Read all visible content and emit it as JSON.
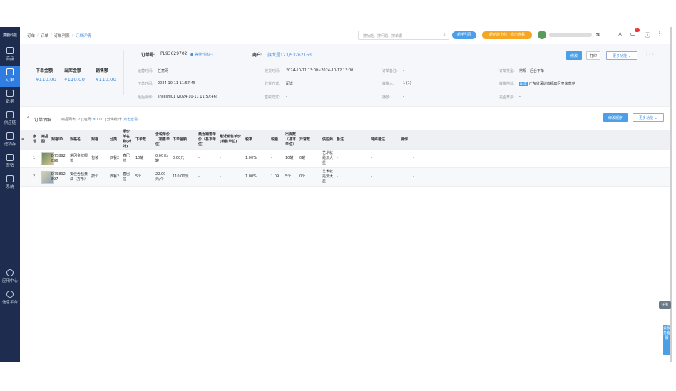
{
  "sidebar": {
    "logo": "燕鹿科技",
    "items": [
      {
        "label": "商品",
        "icon": "shopping-bag-icon"
      },
      {
        "label": "订单",
        "icon": "order-icon",
        "active": true
      },
      {
        "label": "数据",
        "icon": "chart-icon"
      },
      {
        "label": "供应链",
        "icon": "swap-icon"
      },
      {
        "label": "进销存",
        "icon": "inventory-icon"
      },
      {
        "label": "营销",
        "icon": "tag-icon"
      },
      {
        "label": "系统",
        "icon": "gear-icon"
      }
    ],
    "bottom": [
      {
        "label": "应用中心",
        "icon": "apps-icon"
      },
      {
        "label": "信息平台",
        "icon": "cube-icon"
      }
    ]
  },
  "header": {
    "breadcrumb": [
      "订单",
      "订单",
      "订单列表",
      "订单详情"
    ],
    "search_placeholder": "搜功能、搜问题、搜单据",
    "guide": "新手引导",
    "new_feature": "新功能上线，点击查看",
    "notification_count": "1"
  },
  "summary": {
    "labels": [
      "下单金额",
      "出库金额",
      "销售额"
    ],
    "values": [
      "¥110.00",
      "¥110.00",
      "¥110.00"
    ]
  },
  "order": {
    "no_label": "订单号:",
    "no": "PL93629702",
    "status": "● 等待分拣(-)",
    "merchant_label": "商户:",
    "merchant": "旗大是123/S1262163",
    "fields": [
      {
        "label": "运营时间:",
        "value": "任意网"
      },
      {
        "label": "收货时间:",
        "value": "2024-10-11 13:00~2024-10-12 13:00"
      },
      {
        "label": "订单备注:",
        "value": "-"
      },
      {
        "label": "订单类型:",
        "value": "常规 - 后台下单"
      },
      {
        "label": "下单时间:",
        "value": "2024-10-11 11:57:45"
      },
      {
        "label": "收货方式:",
        "value": "配送"
      },
      {
        "label": "收货人:",
        "value": "1 (1)"
      },
      {
        "label": "收货地址:",
        "value": "广东省深圳市福田区皇家草苑",
        "tag": "配送"
      },
      {
        "label": "最后操作:",
        "value": "shceshi01 (2024-10-11 11:57:46)"
      },
      {
        "label": "签收方式:",
        "value": "-"
      },
      {
        "label": "播放:",
        "value": "-"
      },
      {
        "label": "是否开票:",
        "value": "-"
      }
    ]
  },
  "actions": {
    "edit": "修改",
    "print": "打印",
    "more": "更多功能"
  },
  "detail": {
    "title": "订单明细",
    "count_label": "商品列表:",
    "count": "2",
    "refund_label": "运费:",
    "refund": "¥0.00",
    "stat_label": "分类统计:",
    "stat_link": "点击查看",
    "sort_btn": "修改顺序",
    "more": "更多功能"
  },
  "table": {
    "columns": [
      "序号",
      "商品图",
      "规格ID",
      "规格名",
      "规格",
      "分类",
      "报价单名称(对外)",
      "下单数",
      "含税单价（销售单位）",
      "下单金额",
      "最近销售单价（基本单位）",
      "最近销售单价(销售单位)",
      "税率",
      "税额",
      "出库数（基本单位）",
      "异常数",
      "供应商",
      "备注",
      "特殊备注",
      "操作"
    ],
    "rows": [
      [
        "1",
        "",
        "D75892896",
        "常因金牌椰浆",
        "包装",
        "西餐2",
        "春巴拉",
        "10罐",
        "0.00元/罐",
        "0.00元",
        "-",
        "-",
        "1.00%",
        "-",
        "10罐",
        "0罐",
        "艺术就是派大星",
        "-",
        "-",
        "-"
      ],
      [
        "2",
        "",
        "D75892897",
        "安佳含盐黄油（方形）",
        "按个",
        "西餐2",
        "春巴拉",
        "5个",
        "22.00元/个",
        "110.00元",
        "-",
        "-",
        "1.00%",
        "1.09",
        "5个",
        "0个",
        "艺术就是派大星",
        "-",
        "-",
        "-"
      ]
    ]
  },
  "floats": {
    "task": "任务",
    "service": "云服务客服"
  }
}
